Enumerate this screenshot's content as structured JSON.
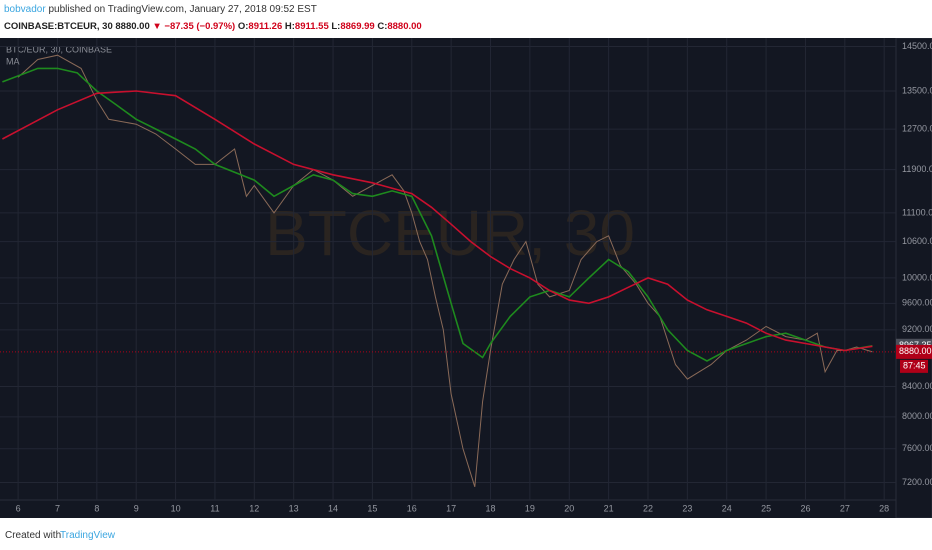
{
  "header": {
    "author": "bobvador",
    "published": "published on TradingView.com, January 27, 2018 09:52 EST"
  },
  "quote": {
    "symbol": "COINBASE:BTCEUR, 30",
    "last": "8880.00",
    "arrow": "▼",
    "change": "−87.35 (−0.97%)",
    "open_label": "O:",
    "open": "8911.26",
    "high_label": "H:",
    "high": "8911.55",
    "low_label": "L:",
    "low": "8869.99",
    "close_label": "C:",
    "close": "8880.00"
  },
  "footer": {
    "created": "Created with",
    "brand": "TradingView"
  },
  "chart_data": {
    "type": "line",
    "title": "BTC/EUR, 30, COINBASE",
    "watermark": "BTCEUR, 30",
    "log_scale": true,
    "grid": true,
    "xlim": [
      5.54,
      28.3
    ],
    "xticks": [
      6,
      7,
      8,
      9,
      10,
      11,
      12,
      13,
      14,
      15,
      16,
      17,
      18,
      19,
      20,
      21,
      22,
      23,
      24,
      25,
      26,
      27,
      28
    ],
    "ylim": [
      7000,
      14700
    ],
    "yticks": [
      {
        "value": 14500,
        "label": "14500.00"
      },
      {
        "value": 13500,
        "label": "13500.00"
      },
      {
        "value": 12700,
        "label": "12700.00"
      },
      {
        "value": 11900,
        "label": "11900.00"
      },
      {
        "value": 11100,
        "label": "11100.00"
      },
      {
        "value": 10600,
        "label": "10600.00"
      },
      {
        "value": 10000,
        "label": "10000.00"
      },
      {
        "value": 9600,
        "label": "9600.00"
      },
      {
        "value": 9200,
        "label": "9200.00"
      },
      {
        "value": 8400,
        "label": "8400.00"
      },
      {
        "value": 8000,
        "label": "8000.00"
      },
      {
        "value": 7600,
        "label": "7600.00"
      },
      {
        "value": 7200,
        "label": "7200.00"
      }
    ],
    "series": [
      {
        "color": "#8a6a58",
        "x": [
          6,
          6.5,
          7,
          7.6,
          8,
          8.3,
          9,
          9.5,
          10,
          10.5,
          11,
          11.5,
          11.8,
          12,
          12.5,
          13,
          13.5,
          14,
          14.5,
          15,
          15.5,
          15.8,
          16,
          16.2,
          16.4,
          16.6,
          16.8,
          17,
          17.3,
          17.6,
          17.8,
          18,
          18.3,
          18.6,
          18.9,
          19.2,
          19.5,
          20,
          20.3,
          20.7,
          21,
          21.3,
          21.7,
          22,
          22.3,
          22.7,
          23,
          23.3,
          23.6,
          24,
          24.5,
          25,
          25.5,
          26,
          26.3,
          26.5,
          26.8,
          27,
          27.3,
          27.7
        ],
        "values": [
          13800,
          14200,
          14300,
          14000,
          13300,
          12900,
          12800,
          12600,
          12300,
          12000,
          12000,
          12300,
          11400,
          11600,
          11100,
          11600,
          11900,
          11700,
          11400,
          11600,
          11800,
          11500,
          11100,
          10600,
          10300,
          9700,
          9200,
          8300,
          7600,
          7150,
          8200,
          8900,
          9900,
          10300,
          10600,
          9900,
          9700,
          9800,
          10300,
          10600,
          10700,
          10200,
          9900,
          9600,
          9400,
          8700,
          8500,
          8600,
          8700,
          8900,
          9050,
          9250,
          9100,
          9050,
          9150,
          8600,
          8900,
          8900,
          8950,
          8880
        ]
      },
      {
        "name": "MA",
        "color": "#1e8a1e",
        "x": [
          5.6,
          6.5,
          7,
          7.5,
          8,
          8.5,
          9,
          9.5,
          10,
          10.5,
          11,
          12,
          12.5,
          13,
          13.5,
          14,
          14.5,
          15,
          15.5,
          16,
          16.5,
          17,
          17.3,
          17.8,
          18,
          18.5,
          19,
          19.5,
          20,
          20.5,
          21,
          21.5,
          22,
          22.5,
          23,
          23.5,
          24,
          25,
          25.5,
          26,
          26.5,
          27,
          27.7
        ],
        "values": [
          13700,
          14000,
          14000,
          13900,
          13500,
          13200,
          12900,
          12700,
          12500,
          12300,
          12000,
          11700,
          11400,
          11600,
          11800,
          11700,
          11450,
          11400,
          11500,
          11400,
          10700,
          9600,
          9000,
          8800,
          9000,
          9400,
          9700,
          9800,
          9700,
          10000,
          10300,
          10100,
          9700,
          9200,
          8900,
          8750,
          8900,
          9100,
          9150,
          9050,
          8950,
          8900,
          8967.35
        ]
      },
      {
        "color": "#c8102e",
        "x": [
          5.6,
          7,
          8,
          9,
          10,
          11,
          12,
          13,
          14,
          15,
          16,
          16.5,
          17,
          17.5,
          18,
          18.5,
          19,
          19.5,
          20,
          20.5,
          21,
          21.5,
          22,
          22.5,
          23,
          23.5,
          24,
          24.5,
          25,
          25.5,
          26,
          26.5,
          27,
          27.7
        ],
        "values": [
          12500,
          13100,
          13450,
          13500,
          13400,
          12900,
          12400,
          12000,
          11800,
          11650,
          11450,
          11200,
          10900,
          10600,
          10350,
          10150,
          10000,
          9800,
          9650,
          9600,
          9700,
          9850,
          10000,
          9900,
          9650,
          9500,
          9400,
          9300,
          9150,
          9050,
          9000,
          8950,
          8900,
          8960
        ]
      }
    ],
    "price_labels": [
      {
        "value": 8967.35,
        "color": "#4a4e59"
      },
      {
        "value": {
          "value": 8880,
          "label": "8880.00"
        },
        "color": "#b00018"
      }
    ],
    "countdown": "87:45"
  }
}
